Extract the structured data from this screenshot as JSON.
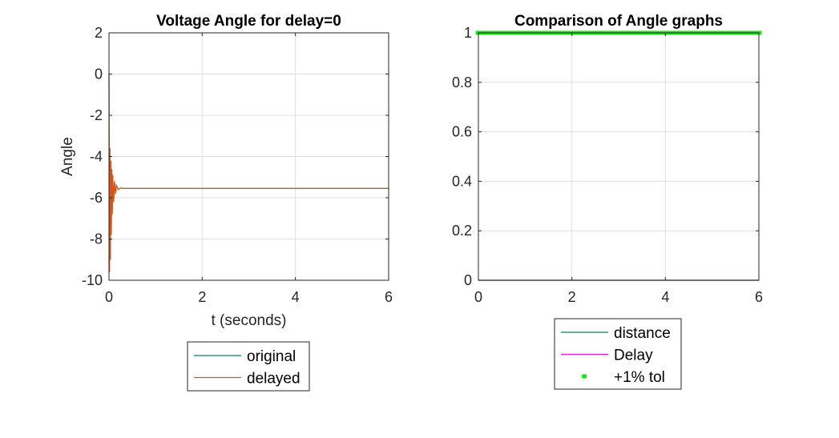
{
  "chart_data": [
    {
      "type": "line",
      "title": "Voltage Angle for delay=0",
      "xlabel": "t (seconds)",
      "ylabel": "Angle",
      "xlim": [
        0,
        6
      ],
      "ylim": [
        -10,
        2
      ],
      "xticks": [
        "0",
        "2",
        "4",
        "6"
      ],
      "yticks": [
        "-10",
        "-8",
        "-6",
        "-4",
        "-2",
        "0",
        "2"
      ],
      "grid": true,
      "legend_position": "below",
      "series": [
        {
          "name": "original",
          "color": "#0a7f5c",
          "x": [
            0,
            0.01,
            0.02,
            0.03,
            0.04,
            0.05,
            0.06,
            0.07,
            0.08,
            0.1,
            0.12,
            0.14,
            0.16,
            0.2,
            0.25,
            0.3,
            1,
            2,
            3,
            4,
            5,
            6
          ],
          "y": [
            0,
            -9.6,
            -3.6,
            -9.0,
            -4.2,
            -7.8,
            -4.6,
            -6.8,
            -4.9,
            -6.2,
            -5.2,
            -5.8,
            -5.4,
            -5.6,
            -5.52,
            -5.55,
            -5.55,
            -5.55,
            -5.55,
            -5.55,
            -5.55,
            -5.55
          ]
        },
        {
          "name": "delayed",
          "color": "#d95319",
          "x": [
            0,
            0.01,
            0.02,
            0.03,
            0.04,
            0.05,
            0.06,
            0.07,
            0.08,
            0.1,
            0.12,
            0.14,
            0.16,
            0.2,
            0.25,
            0.3,
            1,
            2,
            3,
            4,
            5,
            6
          ],
          "y": [
            0,
            -9.6,
            -3.6,
            -9.0,
            -4.2,
            -7.8,
            -4.6,
            -6.8,
            -4.9,
            -6.2,
            -5.2,
            -5.8,
            -5.4,
            -5.6,
            -5.52,
            -5.55,
            -5.55,
            -5.55,
            -5.55,
            -5.55,
            -5.55,
            -5.55
          ]
        }
      ]
    },
    {
      "type": "line",
      "title": "Comparison of Angle graphs",
      "xlabel": "",
      "ylabel": "",
      "xlim": [
        0,
        6
      ],
      "ylim": [
        0,
        1
      ],
      "xticks": [
        "0",
        "2",
        "4",
        "6"
      ],
      "yticks": [
        "0",
        "0.2",
        "0.4",
        "0.6",
        "0.8",
        "1"
      ],
      "grid": true,
      "legend_position": "below",
      "series": [
        {
          "name": "distance",
          "color": "#0a7f5c",
          "style": "line",
          "x": [
            0,
            6
          ],
          "y": [
            0,
            0
          ]
        },
        {
          "name": "Delay",
          "color": "#e020e0",
          "style": "line",
          "x": [
            0,
            6
          ],
          "y": [
            0,
            0
          ]
        },
        {
          "name": "+1% tol",
          "color": "#22e022",
          "style": "marker",
          "x": [
            0,
            6
          ],
          "y": [
            1,
            1
          ]
        }
      ]
    }
  ]
}
